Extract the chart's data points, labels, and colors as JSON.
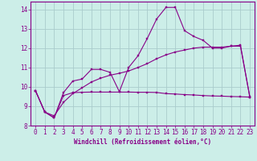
{
  "background_color": "#cceee8",
  "grid_color": "#aacccc",
  "line_color": "#880088",
  "xlabel": "Windchill (Refroidissement éolien,°C)",
  "xlim": [
    -0.5,
    23.5
  ],
  "ylim": [
    8.0,
    14.4
  ],
  "yticks": [
    8,
    9,
    10,
    11,
    12,
    13,
    14
  ],
  "xticks": [
    0,
    1,
    2,
    3,
    4,
    5,
    6,
    7,
    8,
    9,
    10,
    11,
    12,
    13,
    14,
    15,
    16,
    17,
    18,
    19,
    20,
    21,
    22,
    23
  ],
  "curve1_x": [
    0,
    1,
    2,
    3,
    4,
    5,
    6,
    7,
    8,
    9,
    10,
    11,
    12,
    13,
    14,
    15,
    16,
    17,
    18,
    19,
    20,
    21,
    22,
    23
  ],
  "curve1_y": [
    9.8,
    8.7,
    8.4,
    9.7,
    10.3,
    10.4,
    10.9,
    10.9,
    10.75,
    9.75,
    11.0,
    11.6,
    12.5,
    13.5,
    14.1,
    14.1,
    12.9,
    12.6,
    12.4,
    12.0,
    12.0,
    12.1,
    12.1,
    9.5
  ],
  "curve2_x": [
    0,
    1,
    2,
    3,
    4,
    5,
    6,
    7,
    8,
    9,
    10,
    11,
    12,
    13,
    14,
    15,
    16,
    17,
    18,
    19,
    20,
    21,
    22,
    23
  ],
  "curve2_y": [
    9.8,
    8.7,
    8.4,
    9.55,
    9.7,
    9.72,
    9.73,
    9.73,
    9.73,
    9.73,
    9.73,
    9.72,
    9.72,
    9.71,
    9.65,
    9.63,
    9.6,
    9.58,
    9.55,
    9.53,
    9.52,
    9.5,
    9.49,
    9.47
  ],
  "curve3_x": [
    0,
    1,
    2,
    3,
    4,
    5,
    6,
    7,
    8,
    9,
    10,
    11,
    12,
    13,
    14,
    15,
    16,
    17,
    18,
    19,
    20,
    21,
    22,
    23
  ],
  "curve3_y": [
    9.8,
    8.7,
    8.5,
    9.2,
    9.65,
    9.95,
    10.25,
    10.45,
    10.6,
    10.7,
    10.82,
    11.0,
    11.2,
    11.45,
    11.65,
    11.8,
    11.9,
    12.0,
    12.05,
    12.05,
    12.05,
    12.1,
    12.15,
    9.47
  ]
}
